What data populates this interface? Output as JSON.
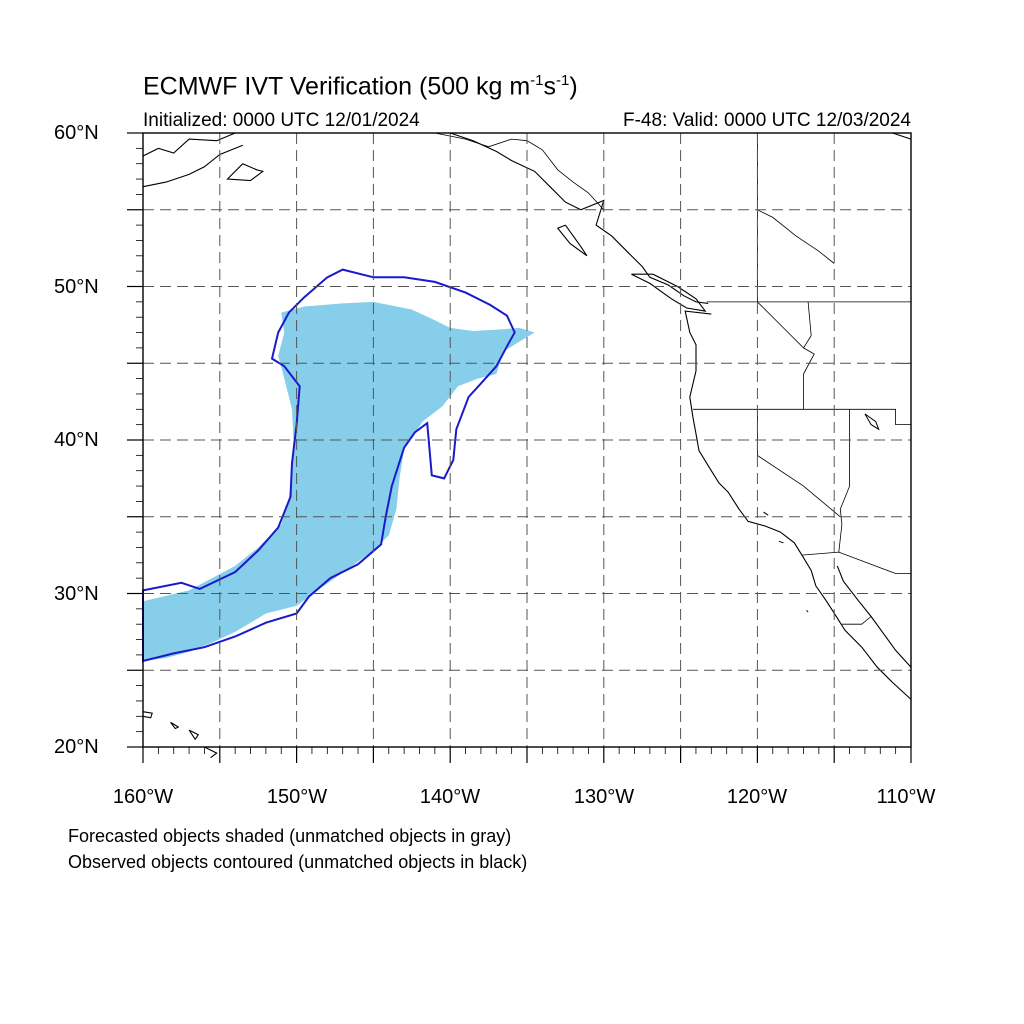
{
  "title": {
    "main": "ECMWF IVT Verification (500 kg m",
    "sup1": "-1",
    "mid": "s",
    "sup2": "-1",
    "end": ")"
  },
  "subtitle_left": "Initialized: 0000 UTC 12/01/2024",
  "subtitle_right": "F-48: Valid: 0000 UTC 12/03/2024",
  "lat_labels": [
    "60°N",
    "50°N",
    "40°N",
    "30°N",
    "20°N"
  ],
  "lon_labels": [
    "160°W",
    "150°W",
    "140°W",
    "130°W",
    "120°W",
    "110°W"
  ],
  "notes": [
    "Forecasted objects shaded (unmatched objects in gray)",
    "Observed objects contoured (unmatched objects in black)"
  ],
  "colors": {
    "forecast_fill": "#87ceea",
    "observed_contour": "#1a1acc",
    "coast": "#000000",
    "grid": "#555555"
  },
  "map_data": {
    "lat_range": [
      20,
      60
    ],
    "lon_range": [
      -160,
      -110
    ],
    "grid_spacing_deg": 5,
    "forecast_object": [
      [
        -160,
        29.5
      ],
      [
        -157,
        30.2
      ],
      [
        -155.5,
        31
      ],
      [
        -154,
        31.8
      ],
      [
        -152.5,
        33
      ],
      [
        -151,
        34.5
      ],
      [
        -150.5,
        36.2
      ],
      [
        -150.3,
        38
      ],
      [
        -150.2,
        40
      ],
      [
        -150.3,
        42
      ],
      [
        -150.8,
        44
      ],
      [
        -151.2,
        45.5
      ],
      [
        -150.8,
        47
      ],
      [
        -151,
        48.3
      ],
      [
        -149.5,
        48.7
      ],
      [
        -147,
        48.9
      ],
      [
        -145,
        49
      ],
      [
        -142.5,
        48.5
      ],
      [
        -141,
        47.8
      ],
      [
        -140,
        47.3
      ],
      [
        -138.5,
        47.1
      ],
      [
        -136.8,
        47.2
      ],
      [
        -135.5,
        47.3
      ],
      [
        -134.5,
        47
      ],
      [
        -135.5,
        46.4
      ],
      [
        -136.5,
        45.8
      ],
      [
        -137,
        44.3
      ],
      [
        -138.2,
        44
      ],
      [
        -139.5,
        43.5
      ],
      [
        -140.5,
        42.2
      ],
      [
        -141.8,
        41.2
      ],
      [
        -143,
        39.4
      ],
      [
        -143.3,
        37.5
      ],
      [
        -143.5,
        35.5
      ],
      [
        -144,
        33.8
      ],
      [
        -145,
        32.8
      ],
      [
        -146.8,
        31.5
      ],
      [
        -148.5,
        30.3
      ],
      [
        -150,
        29.2
      ],
      [
        -152,
        28.7
      ],
      [
        -154,
        27.5
      ],
      [
        -155.5,
        26.8
      ],
      [
        -157,
        26.2
      ],
      [
        -158.5,
        25.8
      ],
      [
        -160,
        25.6
      ]
    ],
    "observed_object": [
      [
        -160,
        30.2
      ],
      [
        -157.5,
        30.7
      ],
      [
        -156.3,
        30.3
      ],
      [
        -154,
        31.4
      ],
      [
        -152.5,
        32.8
      ],
      [
        -151.2,
        34.3
      ],
      [
        -150.4,
        36.3
      ],
      [
        -150.3,
        38.5
      ],
      [
        -150,
        41
      ],
      [
        -149.8,
        43.5
      ],
      [
        -150.8,
        44.8
      ],
      [
        -151.6,
        45.3
      ],
      [
        -151.2,
        47
      ],
      [
        -150.5,
        48.3
      ],
      [
        -149.5,
        49.3
      ],
      [
        -148,
        50.6
      ],
      [
        -147,
        51.1
      ],
      [
        -145,
        50.6
      ],
      [
        -143,
        50.6
      ],
      [
        -141,
        50.3
      ],
      [
        -139,
        49.6
      ],
      [
        -137.4,
        48.8
      ],
      [
        -136.3,
        48.1
      ],
      [
        -135.8,
        47
      ],
      [
        -136.2,
        46.3
      ],
      [
        -137,
        44.8
      ],
      [
        -137.8,
        43.9
      ],
      [
        -138.8,
        42.8
      ],
      [
        -139.6,
        40.7
      ],
      [
        -139.8,
        38.7
      ],
      [
        -140.4,
        37.5
      ],
      [
        -141.2,
        37.7
      ],
      [
        -141.4,
        40
      ],
      [
        -141.5,
        41.1
      ],
      [
        -142.3,
        40.5
      ],
      [
        -143,
        39.5
      ],
      [
        -143.8,
        37
      ],
      [
        -144.2,
        35
      ],
      [
        -144.5,
        33.2
      ],
      [
        -146,
        31.9
      ],
      [
        -147.8,
        31
      ],
      [
        -149.2,
        29.8
      ],
      [
        -150,
        28.7
      ],
      [
        -152,
        28.1
      ],
      [
        -154,
        27.2
      ],
      [
        -156,
        26.5
      ],
      [
        -158,
        26.1
      ],
      [
        -160,
        25.6
      ]
    ],
    "coastlines": [
      [
        [
          -160,
          58.5
        ],
        [
          -159,
          59
        ],
        [
          -158,
          58.7
        ],
        [
          -157,
          59.6
        ],
        [
          -155.2,
          59.5
        ],
        [
          -154,
          60
        ]
      ],
      [
        [
          -160,
          56.5
        ],
        [
          -158.5,
          56.8
        ],
        [
          -157,
          57.3
        ],
        [
          -156,
          57.8
        ],
        [
          -155,
          58.6
        ],
        [
          -153.5,
          59.2
        ]
      ],
      [
        [
          -153.5,
          58
        ],
        [
          -152.6,
          57.6
        ],
        [
          -152.2,
          57.5
        ],
        [
          -153,
          56.9
        ],
        [
          -154.5,
          57
        ],
        [
          -153.5,
          58
        ]
      ],
      [
        [
          -140,
          60
        ],
        [
          -138.5,
          59.5
        ],
        [
          -137,
          58.8
        ],
        [
          -136,
          58.2
        ],
        [
          -134.5,
          57.5
        ],
        [
          -133.5,
          56.5
        ],
        [
          -132.5,
          55.5
        ],
        [
          -131.5,
          55
        ],
        [
          -130,
          55.6
        ],
        [
          -130.5,
          54
        ],
        [
          -129.5,
          53.3
        ],
        [
          -128.5,
          52.3
        ],
        [
          -127.5,
          51.3
        ],
        [
          -127,
          50.6
        ],
        [
          -125.8,
          50.1
        ],
        [
          -124.8,
          49.4
        ],
        [
          -124,
          49
        ],
        [
          -123.2,
          48.9
        ]
      ],
      [
        [
          -132.5,
          54
        ],
        [
          -132,
          53.3
        ],
        [
          -131.5,
          52.6
        ],
        [
          -131.1,
          52
        ],
        [
          -132.2,
          52.8
        ],
        [
          -133,
          53.8
        ],
        [
          -132.5,
          54
        ]
      ],
      [
        [
          -128.2,
          50.8
        ],
        [
          -127,
          50.2
        ],
        [
          -125.6,
          49.2
        ],
        [
          -124.6,
          48.6
        ],
        [
          -123.4,
          48.4
        ],
        [
          -124,
          49.2
        ],
        [
          -125.2,
          50
        ],
        [
          -126.8,
          50.8
        ],
        [
          -128.2,
          50.8
        ]
      ],
      [
        [
          -123,
          48.2
        ],
        [
          -124.7,
          48.4
        ],
        [
          -124.4,
          47
        ],
        [
          -124,
          46.2
        ],
        [
          -124,
          44.5
        ],
        [
          -124.4,
          42.8
        ],
        [
          -124.2,
          41.5
        ],
        [
          -124,
          40.4
        ],
        [
          -123.8,
          39.3
        ],
        [
          -123,
          38
        ],
        [
          -122.5,
          37.2
        ],
        [
          -121.9,
          36.6
        ],
        [
          -121.2,
          35.5
        ],
        [
          -120.6,
          34.7
        ],
        [
          -119.5,
          34.4
        ],
        [
          -118.5,
          34
        ],
        [
          -117.6,
          33.3
        ],
        [
          -117.1,
          32.5
        ],
        [
          -116.5,
          31.5
        ],
        [
          -116.2,
          30.5
        ],
        [
          -115.5,
          29.5
        ],
        [
          -114.8,
          28.4
        ],
        [
          -114.3,
          27.6
        ],
        [
          -113.2,
          26.5
        ],
        [
          -112.2,
          25.2
        ],
        [
          -111.2,
          24.2
        ],
        [
          -110,
          23.1
        ]
      ],
      [
        [
          -114.8,
          31.8
        ],
        [
          -114.4,
          30.8
        ],
        [
          -113.4,
          29.5
        ],
        [
          -112.6,
          28.5
        ],
        [
          -111.8,
          27.4
        ],
        [
          -111,
          26.3
        ],
        [
          -110,
          25.2
        ]
      ],
      [
        [
          -160,
          22.3
        ],
        [
          -159.4,
          22.2
        ],
        [
          -159.5,
          21.9
        ],
        [
          -160,
          22
        ]
      ],
      [
        [
          -158.2,
          21.6
        ],
        [
          -157.7,
          21.3
        ],
        [
          -157.9,
          21.2
        ],
        [
          -158.2,
          21.6
        ]
      ],
      [
        [
          -157,
          21.1
        ],
        [
          -156.4,
          20.8
        ],
        [
          -156.6,
          20.5
        ],
        [
          -157,
          21.1
        ]
      ],
      [
        [
          -156,
          20
        ],
        [
          -155.2,
          19.6
        ],
        [
          -155.6,
          19.3
        ]
      ],
      [
        [
          -110,
          59.6
        ],
        [
          -111.2,
          60
        ]
      ]
    ],
    "borders": [
      [
        [
          -141,
          60
        ],
        [
          -139,
          59.6
        ],
        [
          -137.5,
          59.1
        ],
        [
          -136,
          59.6
        ],
        [
          -135,
          59.5
        ],
        [
          -134,
          58.9
        ],
        [
          -133,
          57.6
        ],
        [
          -132,
          56.8
        ],
        [
          -131,
          56.1
        ],
        [
          -130,
          55
        ]
      ],
      [
        [
          -123.3,
          49
        ],
        [
          -110,
          49
        ]
      ],
      [
        [
          -120,
          60
        ],
        [
          -120,
          49
        ],
        [
          -118,
          47
        ],
        [
          -117,
          46
        ],
        [
          -116.3,
          45.6
        ],
        [
          -117,
          44.3
        ],
        [
          -117,
          42
        ]
      ],
      [
        [
          -124.2,
          42
        ],
        [
          -117,
          42
        ],
        [
          -114,
          42
        ],
        [
          -111,
          42
        ],
        [
          -111,
          41
        ],
        [
          -110,
          41
        ]
      ],
      [
        [
          -120,
          42
        ],
        [
          -120,
          39
        ],
        [
          -117,
          37
        ],
        [
          -114.6,
          35
        ]
      ],
      [
        [
          -117.1,
          32.5
        ],
        [
          -114.7,
          32.7
        ],
        [
          -111,
          31.3
        ],
        [
          -110,
          31.3
        ]
      ],
      [
        [
          -116.7,
          49
        ],
        [
          -116.5,
          46.8
        ],
        [
          -117,
          46
        ]
      ],
      [
        [
          -114,
          42
        ],
        [
          -114,
          37
        ],
        [
          -114.6,
          35.5
        ],
        [
          -114.5,
          34.5
        ],
        [
          -114.7,
          32.7
        ]
      ],
      [
        [
          -111,
          45
        ],
        [
          -110,
          45
        ]
      ],
      [
        [
          -114.5,
          28
        ],
        [
          -113.2,
          28
        ],
        [
          -112.6,
          28.5
        ]
      ],
      [
        [
          -120,
          55
        ],
        [
          -119,
          54.5
        ],
        [
          -117.5,
          53.3
        ],
        [
          -116,
          52.3
        ],
        [
          -115,
          51.5
        ]
      ]
    ],
    "lakes": [
      [
        [
          -113,
          41.7
        ],
        [
          -112.3,
          41.2
        ],
        [
          -112.1,
          40.7
        ],
        [
          -112.6,
          41
        ],
        [
          -113,
          41.7
        ]
      ],
      [
        [
          -119.6,
          35.3
        ],
        [
          -119.3,
          35.1
        ]
      ],
      [
        [
          -118.6,
          33.4
        ],
        [
          -118.3,
          33.3
        ]
      ],
      [
        [
          -116.8,
          28.9
        ],
        [
          -116.7,
          28.8
        ]
      ]
    ]
  }
}
